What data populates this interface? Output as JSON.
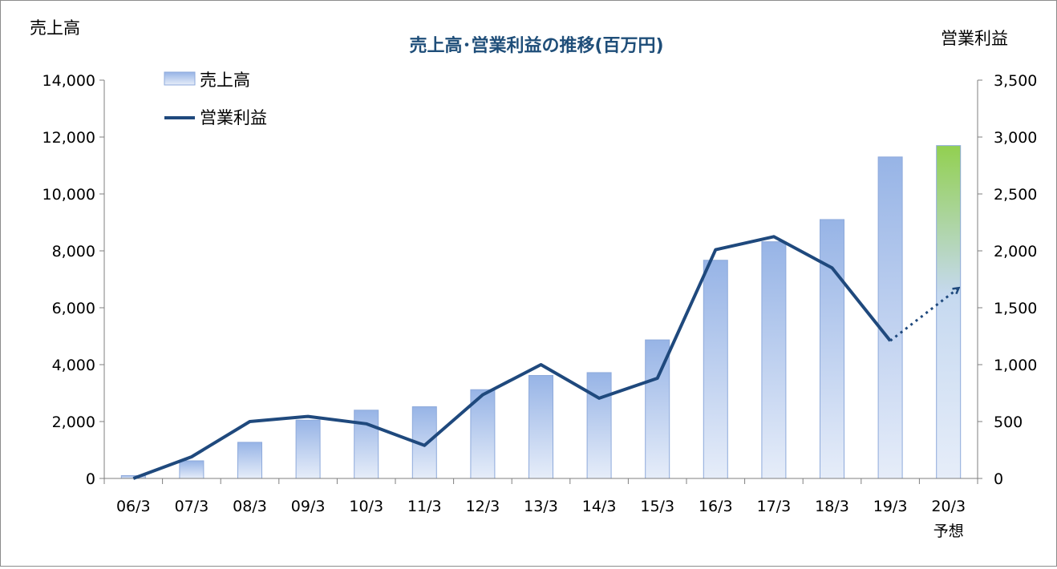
{
  "chart_data": {
    "type": "bar+line",
    "title": "売上高･営業利益の推移(百万円)",
    "y_left_label": "売上高",
    "y_right_label": "営業利益",
    "categories": [
      "06/3",
      "07/3",
      "08/3",
      "09/3",
      "10/3",
      "11/3",
      "12/3",
      "13/3",
      "14/3",
      "15/3",
      "16/3",
      "17/3",
      "18/3",
      "19/3",
      "20/3"
    ],
    "forecast_note": "予想",
    "ylim_left": [
      0,
      14000
    ],
    "ylim_right": [
      0,
      3500
    ],
    "left_ticks": [
      "0",
      "2,000",
      "4,000",
      "6,000",
      "8,000",
      "10,000",
      "12,000",
      "14,000"
    ],
    "right_ticks": [
      "0",
      "500",
      "1,000",
      "1,500",
      "2,000",
      "2,500",
      "3,000",
      "3,500"
    ],
    "series": [
      {
        "name": "売上高",
        "type": "bar",
        "axis": "left",
        "values": [
          100,
          620,
          1270,
          2050,
          2400,
          2520,
          3120,
          3620,
          3720,
          4870,
          7670,
          8320,
          9100,
          11300,
          11700
        ]
      },
      {
        "name": "営業利益",
        "type": "line",
        "axis": "right",
        "values": [
          0,
          190,
          500,
          545,
          480,
          290,
          735,
          1000,
          705,
          880,
          2010,
          2125,
          1850,
          1210,
          null
        ],
        "forecast_value": 1670
      }
    ],
    "colors": {
      "bar_top": "#97b4e6",
      "bar_bottom": "#e6edf9",
      "forecast_top": "#92d050",
      "line": "#1f497d"
    },
    "legend_position": "top-left",
    "grid": false
  }
}
